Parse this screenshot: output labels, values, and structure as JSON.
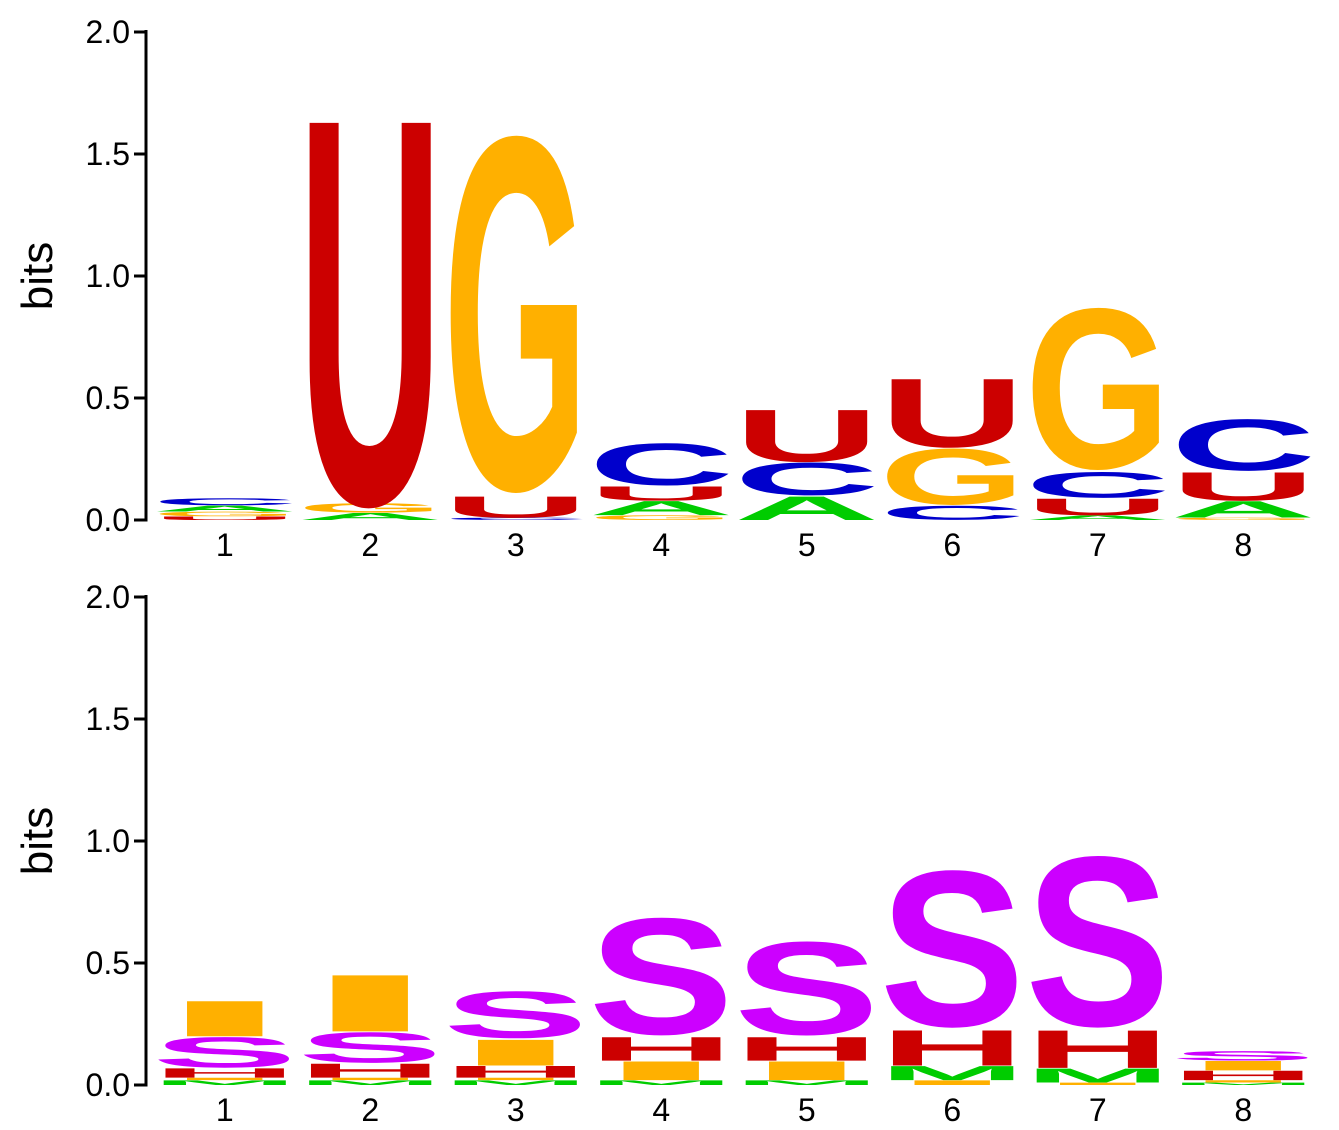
{
  "colors": {
    "A": "#00cc00",
    "C": "#0000cc",
    "G": "#ffb000",
    "U": "#cc0000",
    "H": "#cc0000",
    "I": "#ffb000",
    "M": "#00cc00",
    "S": "#cc00ff"
  },
  "chart_data": [
    {
      "type": "sequence-logo",
      "ylabel": "bits",
      "ylim": [
        0,
        2
      ],
      "yticks": [
        "0.0",
        "0.5",
        "1.0",
        "1.5",
        "2.0"
      ],
      "ytick_values": [
        0,
        0.5,
        1,
        1.5,
        2
      ],
      "positions": [
        "1",
        "2",
        "3",
        "4",
        "5",
        "6",
        "7",
        "8"
      ],
      "stacks": [
        [
          {
            "letter": "U",
            "value": 0.015
          },
          {
            "letter": "G",
            "value": 0.02
          },
          {
            "letter": "A",
            "value": 0.025
          },
          {
            "letter": "C",
            "value": 0.03
          }
        ],
        [
          {
            "letter": "A",
            "value": 0.03
          },
          {
            "letter": "G",
            "value": 0.04
          },
          {
            "letter": "U",
            "value": 1.63
          }
        ],
        [
          {
            "letter": "C",
            "value": 0.01
          },
          {
            "letter": "U",
            "value": 0.09
          },
          {
            "letter": "G",
            "value": 1.52
          }
        ],
        [
          {
            "letter": "G",
            "value": 0.02
          },
          {
            "letter": "A",
            "value": 0.06
          },
          {
            "letter": "U",
            "value": 0.06
          },
          {
            "letter": "C",
            "value": 0.18
          }
        ],
        [
          {
            "letter": "A",
            "value": 0.1
          },
          {
            "letter": "C",
            "value": 0.14
          },
          {
            "letter": "U",
            "value": 0.22
          }
        ],
        [
          {
            "letter": "C",
            "value": 0.06
          },
          {
            "letter": "G",
            "value": 0.24
          },
          {
            "letter": "U",
            "value": 0.29
          }
        ],
        [
          {
            "letter": "A",
            "value": 0.02
          },
          {
            "letter": "U",
            "value": 0.07
          },
          {
            "letter": "C",
            "value": 0.11
          },
          {
            "letter": "G",
            "value": 0.69
          }
        ],
        [
          {
            "letter": "G",
            "value": 0.01
          },
          {
            "letter": "A",
            "value": 0.07
          },
          {
            "letter": "U",
            "value": 0.12
          },
          {
            "letter": "C",
            "value": 0.22
          }
        ]
      ]
    },
    {
      "type": "sequence-logo",
      "ylabel": "bits",
      "ylim": [
        0,
        2
      ],
      "yticks": [
        "0.0",
        "0.5",
        "1.0",
        "1.5",
        "2.0"
      ],
      "ytick_values": [
        0,
        0.5,
        1,
        1.5,
        2
      ],
      "positions": [
        "1",
        "2",
        "3",
        "4",
        "5",
        "6",
        "7",
        "8"
      ],
      "stacks": [
        [
          {
            "letter": "M",
            "value": 0.02
          },
          {
            "letter": "I",
            "value": 0.01
          },
          {
            "letter": "H",
            "value": 0.04
          },
          {
            "letter": "S",
            "value": 0.13
          },
          {
            "letter": "I",
            "value": 0.15
          }
        ],
        [
          {
            "letter": "M",
            "value": 0.02
          },
          {
            "letter": "I",
            "value": 0.01
          },
          {
            "letter": "H",
            "value": 0.06
          },
          {
            "letter": "S",
            "value": 0.13
          },
          {
            "letter": "I",
            "value": 0.24
          }
        ],
        [
          {
            "letter": "M",
            "value": 0.02
          },
          {
            "letter": "I",
            "value": 0.01
          },
          {
            "letter": "H",
            "value": 0.05
          },
          {
            "letter": "I",
            "value": 0.11
          },
          {
            "letter": "S",
            "value": 0.2
          }
        ],
        [
          {
            "letter": "M",
            "value": 0.02
          },
          {
            "letter": "I",
            "value": 0.08
          },
          {
            "letter": "H",
            "value": 0.1
          },
          {
            "letter": "S",
            "value": 0.5
          }
        ],
        [
          {
            "letter": "M",
            "value": 0.02
          },
          {
            "letter": "I",
            "value": 0.08
          },
          {
            "letter": "H",
            "value": 0.1
          },
          {
            "letter": "S",
            "value": 0.4
          }
        ],
        [
          {
            "letter": "I",
            "value": 0.02
          },
          {
            "letter": "M",
            "value": 0.06
          },
          {
            "letter": "H",
            "value": 0.15
          },
          {
            "letter": "S",
            "value": 0.67
          }
        ],
        [
          {
            "letter": "I",
            "value": 0.01
          },
          {
            "letter": "M",
            "value": 0.06
          },
          {
            "letter": "H",
            "value": 0.16
          },
          {
            "letter": "S",
            "value": 0.73
          }
        ],
        [
          {
            "letter": "M",
            "value": 0.01
          },
          {
            "letter": "I",
            "value": 0.01
          },
          {
            "letter": "H",
            "value": 0.04
          },
          {
            "letter": "I",
            "value": 0.04
          },
          {
            "letter": "S",
            "value": 0.04
          }
        ]
      ]
    }
  ]
}
